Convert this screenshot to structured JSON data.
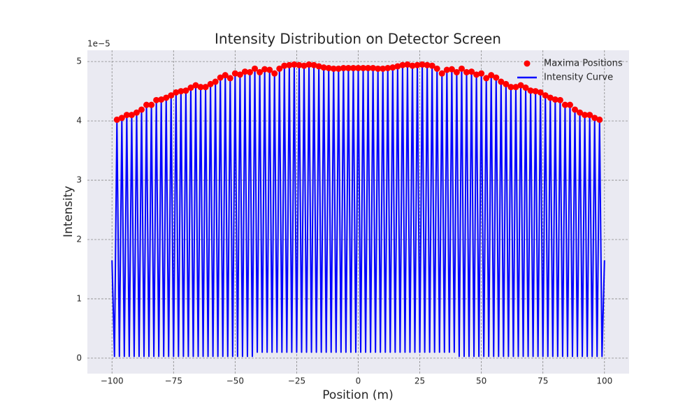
{
  "chart_data": {
    "type": "line",
    "title": "Intensity Distribution on Detector Screen",
    "xlabel": "Position (m)",
    "ylabel": "Intensity",
    "y_offset_label": "1e−5",
    "xlim": [
      -110,
      110
    ],
    "ylim": [
      -0.26,
      5.19
    ],
    "xticks": [
      {
        "value": -100,
        "label": "−100"
      },
      {
        "value": -75,
        "label": "−75"
      },
      {
        "value": -50,
        "label": "−50"
      },
      {
        "value": -25,
        "label": "−25"
      },
      0,
      25,
      50,
      75,
      100
    ],
    "yticks": [
      0,
      1,
      2,
      3,
      4,
      5
    ],
    "grid": true,
    "legend": "upper right",
    "series": [
      {
        "name": "Maxima Positions",
        "type": "scatter",
        "color": "#ff0000",
        "x": [
          -98,
          -96,
          -94,
          -92,
          -90,
          -88,
          -86,
          -84,
          -82,
          -80,
          -78,
          -76,
          -74,
          -72,
          -70,
          -68,
          -66,
          -64,
          -62,
          -60,
          -58,
          -56,
          -54,
          -52,
          -50,
          -48,
          -46,
          -44,
          -42,
          -40,
          -38,
          -36,
          -34,
          -32,
          -30,
          -28,
          -26,
          -24,
          -22,
          -20,
          -18,
          -16,
          -14,
          -12,
          -10,
          -8,
          -6,
          -4,
          -2,
          0,
          2,
          4,
          6,
          8,
          10,
          12,
          14,
          16,
          18,
          20,
          22,
          24,
          26,
          28,
          30,
          32,
          34,
          36,
          38,
          40,
          42,
          44,
          46,
          48,
          50,
          52,
          54,
          56,
          58,
          60,
          62,
          64,
          66,
          68,
          70,
          72,
          74,
          76,
          78,
          80,
          82,
          84,
          86,
          88,
          90,
          92,
          94,
          96,
          98
        ],
        "values": [
          4.02,
          4.05,
          4.1,
          4.1,
          4.14,
          4.19,
          4.27,
          4.27,
          4.35,
          4.36,
          4.39,
          4.43,
          4.48,
          4.5,
          4.51,
          4.56,
          4.6,
          4.57,
          4.57,
          4.62,
          4.66,
          4.73,
          4.77,
          4.72,
          4.8,
          4.78,
          4.83,
          4.82,
          4.88,
          4.82,
          4.87,
          4.86,
          4.8,
          4.88,
          4.93,
          4.94,
          4.95,
          4.94,
          4.93,
          4.95,
          4.94,
          4.92,
          4.9,
          4.89,
          4.88,
          4.88,
          4.89,
          4.89,
          4.89,
          4.89,
          4.89,
          4.89,
          4.89,
          4.88,
          4.88,
          4.89,
          4.9,
          4.92,
          4.94,
          4.95,
          4.93,
          4.94,
          4.95,
          4.94,
          4.93,
          4.88,
          4.8,
          4.86,
          4.87,
          4.82,
          4.88,
          4.82,
          4.83,
          4.78,
          4.8,
          4.72,
          4.77,
          4.73,
          4.66,
          4.62,
          4.57,
          4.57,
          4.6,
          4.56,
          4.51,
          4.5,
          4.48,
          4.43,
          4.39,
          4.36,
          4.35,
          4.27,
          4.27,
          4.19,
          4.14,
          4.1,
          4.1,
          4.05,
          4.02
        ]
      },
      {
        "name": "Intensity Curve",
        "type": "line",
        "color": "#0000ff",
        "x": [
          -100,
          -99,
          -98,
          -97,
          -96,
          -95,
          -94,
          -93,
          -92,
          -91,
          -90,
          -89,
          -88,
          -87,
          -86,
          -85,
          -84,
          -83,
          -82,
          -81,
          -80,
          -79,
          -78,
          -77,
          -76,
          -75,
          -74,
          -73,
          -72,
          -71,
          -70,
          -69,
          -68,
          -67,
          -66,
          -65,
          -64,
          -63,
          -62,
          -61,
          -60,
          -59,
          -58,
          -57,
          -56,
          -55,
          -54,
          -53,
          -52,
          -51,
          -50,
          -49,
          -48,
          -47,
          -46,
          -45,
          -44,
          -43,
          -42,
          -41,
          -40,
          -39,
          -38,
          -37,
          -36,
          -35,
          -34,
          -33,
          -32,
          -31,
          -30,
          -29,
          -28,
          -27,
          -26,
          -25,
          -24,
          -23,
          -22,
          -21,
          -20,
          -19,
          -18,
          -17,
          -16,
          -15,
          -14,
          -13,
          -12,
          -11,
          -10,
          -9,
          -8,
          -7,
          -6,
          -5,
          -4,
          -3,
          -2,
          -1,
          0,
          1,
          2,
          3,
          4,
          5,
          6,
          7,
          8,
          9,
          10,
          11,
          12,
          13,
          14,
          15,
          16,
          17,
          18,
          19,
          20,
          21,
          22,
          23,
          24,
          25,
          26,
          27,
          28,
          29,
          30,
          31,
          32,
          33,
          34,
          35,
          36,
          37,
          38,
          39,
          40,
          41,
          42,
          43,
          44,
          45,
          46,
          47,
          48,
          49,
          50,
          51,
          52,
          53,
          54,
          55,
          56,
          57,
          58,
          59,
          60,
          61,
          62,
          63,
          64,
          65,
          66,
          67,
          68,
          69,
          70,
          71,
          72,
          73,
          74,
          75,
          76,
          77,
          78,
          79,
          80,
          81,
          82,
          83,
          84,
          85,
          86,
          87,
          88,
          89,
          90,
          91,
          92,
          93,
          94,
          95,
          96,
          97,
          98,
          99,
          100
        ],
        "values": [
          1.65,
          0.03,
          4.02,
          0.03,
          4.05,
          0.03,
          4.1,
          0.03,
          4.1,
          0.03,
          4.14,
          0.03,
          4.19,
          0.03,
          4.27,
          0.03,
          4.27,
          0.03,
          4.35,
          0.03,
          4.36,
          0.03,
          4.39,
          0.03,
          4.43,
          0.03,
          4.48,
          0.03,
          4.5,
          0.03,
          4.51,
          0.03,
          4.56,
          0.03,
          4.6,
          0.03,
          4.57,
          0.03,
          4.57,
          0.03,
          4.62,
          0.03,
          4.66,
          0.03,
          4.73,
          0.03,
          4.77,
          0.03,
          4.72,
          0.03,
          4.8,
          0.03,
          4.78,
          0.03,
          4.83,
          0.03,
          4.82,
          0.03,
          4.88,
          0.1,
          4.82,
          0.1,
          4.87,
          0.1,
          4.86,
          0.1,
          4.8,
          0.1,
          4.88,
          0.1,
          4.93,
          0.1,
          4.94,
          0.1,
          4.95,
          0.1,
          4.94,
          0.1,
          4.93,
          0.1,
          4.95,
          0.1,
          4.94,
          0.1,
          4.92,
          0.1,
          4.9,
          0.1,
          4.89,
          0.1,
          4.88,
          0.1,
          4.88,
          0.1,
          4.89,
          0.1,
          4.89,
          0.1,
          4.89,
          0.1,
          4.89,
          0.1,
          4.89,
          0.1,
          4.89,
          0.1,
          4.89,
          0.1,
          4.88,
          0.1,
          4.88,
          0.1,
          4.89,
          0.1,
          4.9,
          0.1,
          4.92,
          0.1,
          4.94,
          0.1,
          4.95,
          0.1,
          4.93,
          0.1,
          4.94,
          0.1,
          4.95,
          0.1,
          4.94,
          0.1,
          4.93,
          0.1,
          4.88,
          0.1,
          4.8,
          0.1,
          4.86,
          0.1,
          4.87,
          0.1,
          4.82,
          0.03,
          4.88,
          0.03,
          4.82,
          0.03,
          4.83,
          0.03,
          4.78,
          0.03,
          4.8,
          0.03,
          4.72,
          0.03,
          4.77,
          0.03,
          4.73,
          0.03,
          4.66,
          0.03,
          4.62,
          0.03,
          4.57,
          0.03,
          4.57,
          0.03,
          4.6,
          0.03,
          4.56,
          0.03,
          4.51,
          0.03,
          4.5,
          0.03,
          4.48,
          0.03,
          4.43,
          0.03,
          4.39,
          0.03,
          4.36,
          0.03,
          4.35,
          0.03,
          4.27,
          0.03,
          4.27,
          0.03,
          4.19,
          0.03,
          4.14,
          0.03,
          4.1,
          0.03,
          4.1,
          0.03,
          4.05,
          0.03,
          4.02,
          0.03,
          1.65
        ]
      }
    ]
  }
}
